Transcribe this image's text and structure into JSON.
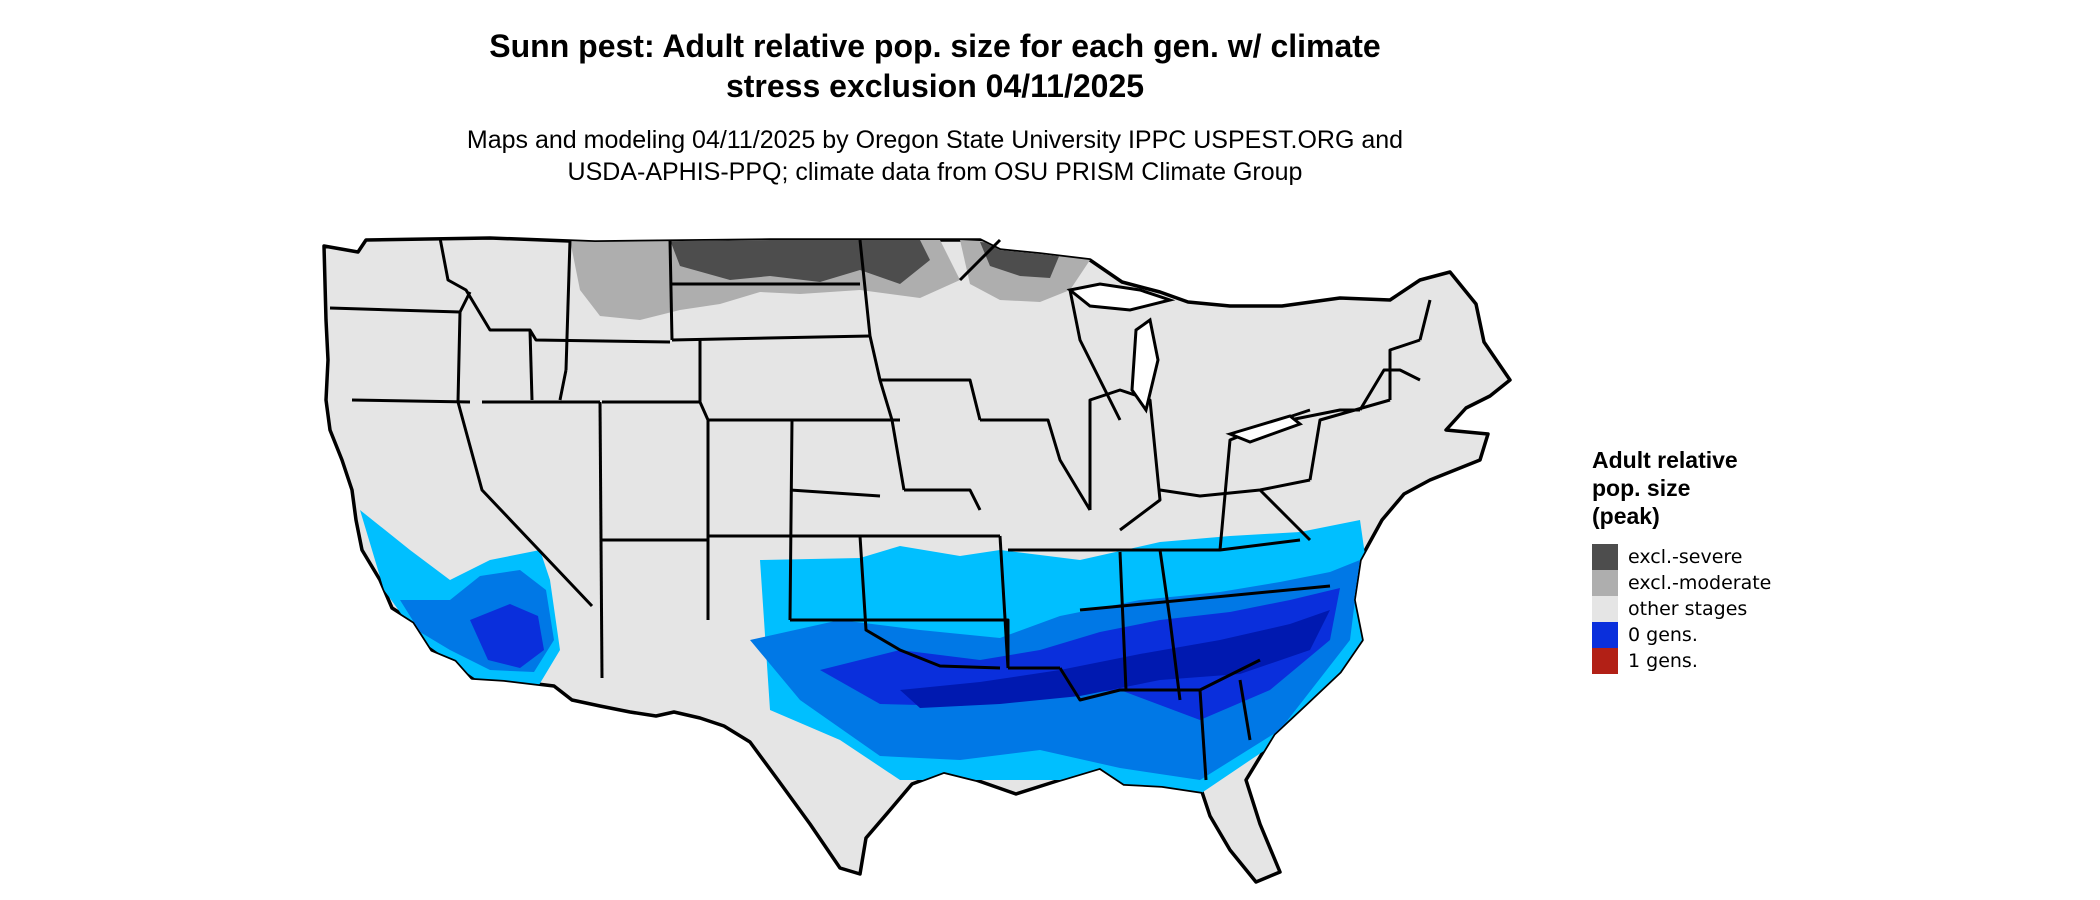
{
  "title": {
    "line1": "Sunn pest: Adult relative pop. size for each gen. w/ climate",
    "line2": "stress exclusion 04/11/2025"
  },
  "subtitle": {
    "line1": "Maps and modeling 04/11/2025 by Oregon State University IPPC USPEST.ORG and",
    "line2": "USDA-APHIS-PPQ; climate data from OSU PRISM Climate Group"
  },
  "legend": {
    "title_lines": [
      "Adult relative",
      "pop. size",
      "(peak)"
    ],
    "items": [
      {
        "label": "excl.-severe",
        "color": "#4d4d4d"
      },
      {
        "label": "excl.-moderate",
        "color": "#aeaeae"
      },
      {
        "label": "other stages",
        "color": "#e5e5e5"
      },
      {
        "label": "0 gens.",
        "color": "#0a2fdc"
      },
      {
        "label": "1 gens.",
        "color": "#b22016"
      }
    ]
  },
  "map": {
    "region": "conterminous-united-states",
    "base_color": "#e5e5e5",
    "border_color": "#000000",
    "zone_colors": {
      "light_blue": "#00bfff",
      "medium_blue": "#0078e6",
      "blue": "#0a2fdc",
      "dark_blue": "#0019b0"
    }
  }
}
